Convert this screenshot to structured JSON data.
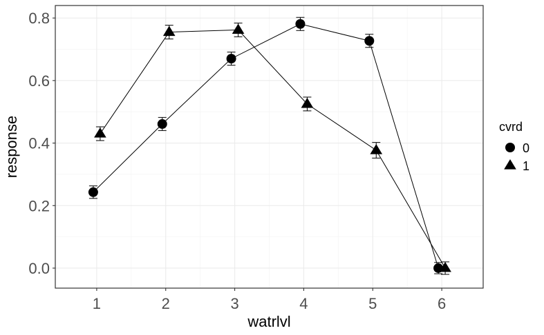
{
  "chart_data": {
    "type": "line",
    "xlabel": "watrlvl",
    "ylabel": "response",
    "x": [
      1,
      2,
      3,
      4,
      5,
      6
    ],
    "xlim": [
      0.4,
      6.6
    ],
    "ylim": [
      -0.064,
      0.84
    ],
    "x_ticks": [
      "1",
      "2",
      "3",
      "4",
      "5",
      "6"
    ],
    "y_ticks": [
      "0.0",
      "0.2",
      "0.4",
      "0.6",
      "0.8"
    ],
    "y_tick_values": [
      0.0,
      0.2,
      0.4,
      0.6,
      0.8
    ],
    "grid": true,
    "legend_position": "right",
    "legend_title": "cvrd",
    "dodge": 0.1,
    "series": [
      {
        "name": "0",
        "shape": "circle",
        "values": [
          0.243,
          0.461,
          0.67,
          0.781,
          0.727,
          0.0
        ],
        "errors": [
          0.02,
          0.021,
          0.021,
          0.021,
          0.021,
          0.018
        ]
      },
      {
        "name": "1",
        "shape": "triangle",
        "values": [
          0.43,
          0.755,
          0.762,
          0.525,
          0.377,
          0.0
        ],
        "errors": [
          0.022,
          0.022,
          0.022,
          0.022,
          0.025,
          0.02
        ]
      }
    ],
    "colors": {
      "panel_border": "#333333",
      "grid_major": "#ebebeb",
      "grid_minor": "#f5f5f5",
      "ink": "#000000",
      "tick_text": "#4d4d4d"
    }
  }
}
